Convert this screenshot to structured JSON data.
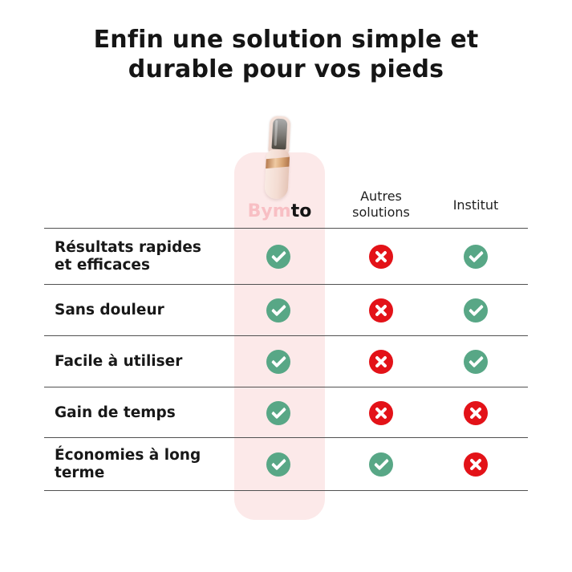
{
  "chart_data": {
    "type": "table",
    "title": "Enfin une solution simple et durable pour vos pieds",
    "title_lines": [
      "Enfin une solution simple et",
      "durable pour vos pieds"
    ],
    "columns": [
      {
        "id": "bymto",
        "label": "Bymto",
        "brand_prefix": "Bym",
        "brand_suffix": "to"
      },
      {
        "id": "autres_solutions",
        "label": "Autres solutions"
      },
      {
        "id": "institut",
        "label": "Institut"
      }
    ],
    "rows": [
      {
        "label": "Résultats rapides et efficaces",
        "cells": [
          "check",
          "cross",
          "check"
        ]
      },
      {
        "label": "Sans douleur",
        "cells": [
          "check",
          "cross",
          "check"
        ]
      },
      {
        "label": "Facile à utiliser",
        "cells": [
          "check",
          "cross",
          "check"
        ]
      },
      {
        "label": "Gain de temps",
        "cells": [
          "check",
          "cross",
          "cross"
        ]
      },
      {
        "label": "Économies à long terme",
        "cells": [
          "check",
          "check",
          "cross"
        ]
      }
    ]
  },
  "product": {
    "description": "pedicure-device"
  },
  "colors": {
    "check_green": "#58a786",
    "cross_red": "#e31218",
    "highlight_pink": "#fce9e9",
    "brand_pink": "#f8bfc4",
    "text_dark": "#151515",
    "divider_gray": "#515151"
  }
}
